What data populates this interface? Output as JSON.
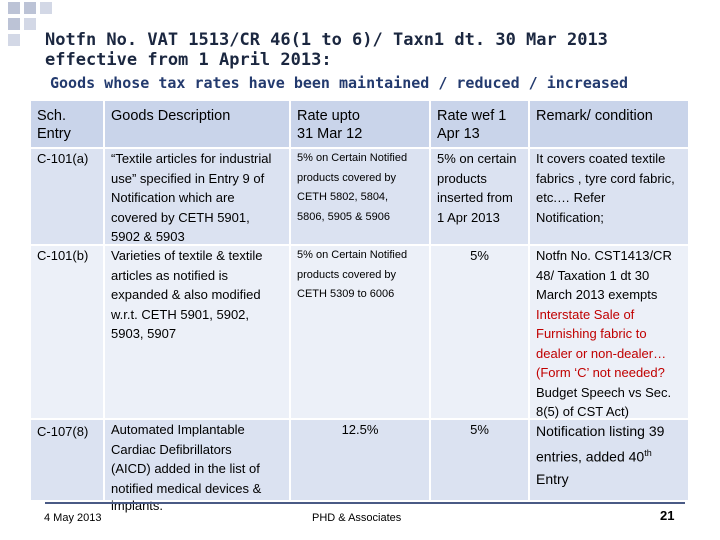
{
  "slide": {
    "title_line1": "Notfn No. VAT 1513/CR 46(1 to 6)/ Taxn1 dt. 30 Mar 2013",
    "title_line2": "effective from 1 April 2013:",
    "subtitle": "Goods whose tax rates have been maintained / reduced / increased"
  },
  "table": {
    "headers": {
      "sch": [
        "Sch.",
        "Entry"
      ],
      "desc": [
        "Goods Description"
      ],
      "rate_upto": [
        "Rate upto",
        "31 Mar 12"
      ],
      "rate_wef": [
        "Rate wef 1",
        "Apr 13"
      ],
      "remark": [
        "Remark/ condition"
      ]
    },
    "rows": [
      {
        "sch": "C-101(a)",
        "desc": [
          "“Textile articles for industrial",
          "use” specified in Entry 9 of",
          "Notification which are",
          "covered by CETH 5901,",
          "5902 & 5903"
        ],
        "rate_upto": [
          "5% on Certain Notified",
          "products covered by",
          "CETH 5802, 5804,",
          "5806, 5905 & 5906"
        ],
        "rate_wef": [
          "5% on certain",
          "products",
          "inserted from",
          "1 Apr 2013"
        ],
        "remark": [
          "It covers coated textile",
          "fabrics , tyre cord fabric,",
          "etc.… Refer",
          "Notification;"
        ]
      },
      {
        "sch": "C-101(b)",
        "desc": [
          "Varieties of textile & textile",
          "articles as notified is",
          "expanded & also modified",
          "w.r.t. CETH 5901, 5902,",
          "5903, 5907"
        ],
        "rate_upto": [
          "5% on Certain Notified",
          "products covered by",
          "CETH 5309 to 6006"
        ],
        "rate_wef": "5%",
        "remark": [
          "Notfn No. CST1413/CR",
          "48/ Taxation 1 dt 30",
          "March 2013 exempts",
          "Interstate Sale of",
          "Furnishing fabric to",
          "dealer or non-dealer…",
          "(Form ‘C’ not needed?",
          "Budget Speech vs Sec.",
          "8(5) of CST Act)"
        ]
      },
      {
        "sch": "C-107(8)",
        "desc": [
          "Automated Implantable",
          "Cardiac Defibrillators",
          "(AICD) added in the list of",
          "notified medical devices &",
          "implants."
        ],
        "rate_upto": "12.5%",
        "rate_wef": "5%",
        "remark_line1": "Notification listing 39",
        "remark_line2_pre": "entries, added 40",
        "remark_line2_sup": "th",
        "remark_line3": "Entry"
      }
    ]
  },
  "footer": {
    "date": "4 May 2013",
    "org": "PHD & Associates",
    "page": "21"
  },
  "colors": {
    "header_bg": "#c9d4ea",
    "band_dark": "#dbe2f1",
    "band_light": "#ecf0f8",
    "title": "#1b2740",
    "subtitle": "#233a6e",
    "highlight": "#c00000"
  }
}
